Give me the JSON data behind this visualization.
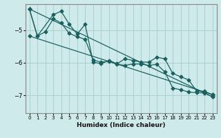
{
  "xlabel": "Humidex (Indice chaleur)",
  "background_color": "#ceeaea",
  "grid_color": "#aad0d0",
  "line_color": "#1a6060",
  "xlim": [
    -0.5,
    23.5
  ],
  "ylim": [
    -7.55,
    -4.2
  ],
  "yticks": [
    -7,
    -6,
    -5
  ],
  "xticks": [
    0,
    1,
    2,
    3,
    4,
    5,
    6,
    7,
    8,
    9,
    10,
    11,
    12,
    13,
    14,
    15,
    16,
    17,
    18,
    19,
    20,
    21,
    22,
    23
  ],
  "line1_x": [
    0,
    1,
    2,
    3,
    4,
    5,
    6,
    7,
    8,
    9,
    10,
    11,
    12,
    13,
    14,
    15,
    16,
    17,
    18,
    19,
    20,
    21,
    22,
    23
  ],
  "line1_y": [
    -4.35,
    -5.18,
    -5.05,
    -4.65,
    -4.78,
    -5.1,
    -5.2,
    -5.28,
    -5.92,
    -5.98,
    -5.96,
    -6.05,
    -6.08,
    -6.04,
    -6.04,
    -6.08,
    -6.05,
    -6.28,
    -6.78,
    -6.83,
    -6.9,
    -6.92,
    -6.93,
    -7.05
  ],
  "line2_x": [
    0,
    1,
    3,
    4,
    5,
    6,
    7,
    8,
    9,
    10,
    11,
    12,
    13,
    14,
    15,
    16,
    17,
    18,
    19,
    20,
    21,
    22,
    23
  ],
  "line2_y": [
    -4.35,
    -5.18,
    -4.52,
    -4.42,
    -4.82,
    -5.12,
    -4.82,
    -5.98,
    -6.03,
    -5.93,
    -6.03,
    -5.88,
    -5.93,
    -5.98,
    -5.98,
    -5.83,
    -5.88,
    -6.33,
    -6.43,
    -6.53,
    -6.87,
    -6.88,
    -6.98
  ],
  "line3_x": [
    0,
    23
  ],
  "line3_y": [
    -4.35,
    -7.05
  ],
  "line4_x": [
    0,
    23
  ],
  "line4_y": [
    -5.18,
    -6.98
  ]
}
